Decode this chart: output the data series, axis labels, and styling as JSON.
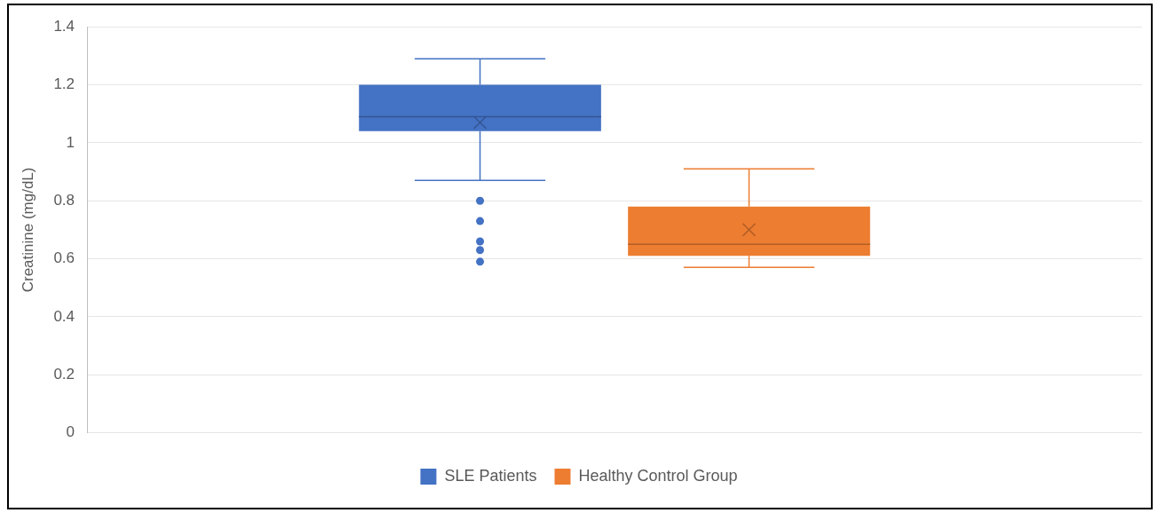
{
  "chart_data": {
    "type": "box",
    "ylabel": "Creatinine (mg/dL)",
    "categories": [
      null
    ],
    "ylim": [
      0,
      1.4
    ],
    "yticks": [
      0,
      0.2,
      0.4,
      0.6,
      0.8,
      1,
      1.2,
      1.4
    ],
    "grid": "y",
    "legend": "bottom",
    "marker": "circle",
    "series": [
      {
        "name": "SLE Patients",
        "color": "#4472c4",
        "boxes": [
          {
            "low": 0.87,
            "q1": 1.04,
            "median": 1.09,
            "q3": 1.2,
            "high": 1.29,
            "mean": 1.07,
            "outliers": [
              0.8,
              0.73,
              0.66,
              0.63,
              0.59
            ]
          }
        ]
      },
      {
        "name": "Healthy Control Group",
        "color": "#ed7d31",
        "boxes": [
          {
            "low": 0.57,
            "q1": 0.61,
            "median": 0.65,
            "q3": 0.78,
            "high": 0.91,
            "mean": 0.7
          }
        ]
      }
    ]
  }
}
